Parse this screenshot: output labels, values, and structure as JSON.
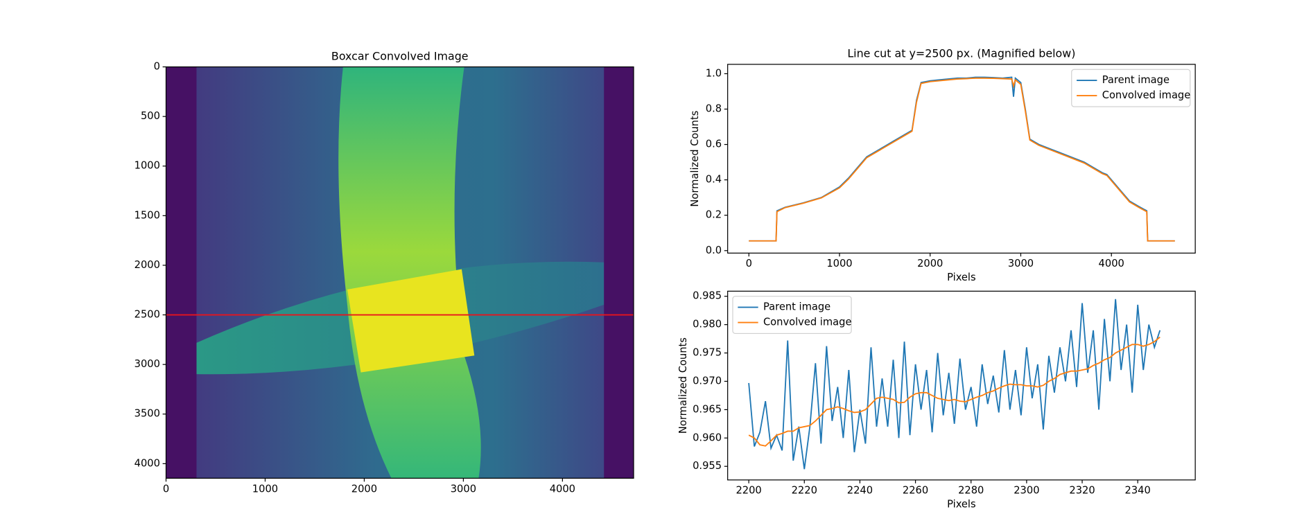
{
  "chart_data": [
    {
      "type": "image",
      "title": "Boxcar Convolved Image",
      "xlim": [
        0,
        4718
      ],
      "ylim": [
        4147,
        0
      ],
      "xticks": [
        0,
        1000,
        2000,
        3000,
        4000
      ],
      "yticks": [
        0,
        500,
        1000,
        1500,
        2000,
        2500,
        3000,
        3500,
        4000
      ],
      "hline": 2500,
      "hline_color": "#e8141c"
    },
    {
      "type": "line",
      "title": "Line cut at y=2500 px. (Magnified below)",
      "xlabel": "Pixels",
      "ylabel": "Normalized Counts",
      "x": [
        0,
        300,
        310,
        400,
        600,
        800,
        1000,
        1100,
        1200,
        1300,
        1400,
        1500,
        1600,
        1700,
        1800,
        1850,
        1900,
        2000,
        2100,
        2200,
        2300,
        2400,
        2500,
        2600,
        2700,
        2800,
        2900,
        2920,
        2940,
        3000,
        3050,
        3100,
        3200,
        3300,
        3400,
        3500,
        3600,
        3700,
        3800,
        3900,
        3950,
        4000,
        4100,
        4200,
        4300,
        4390,
        4400,
        4700
      ],
      "series": [
        {
          "name": "Parent image",
          "color": "#1f77b4",
          "values": [
            0.055,
            0.055,
            0.225,
            0.245,
            0.27,
            0.3,
            0.36,
            0.41,
            0.47,
            0.53,
            0.56,
            0.59,
            0.62,
            0.65,
            0.68,
            0.85,
            0.95,
            0.96,
            0.965,
            0.97,
            0.975,
            0.975,
            0.98,
            0.98,
            0.978,
            0.975,
            0.98,
            0.87,
            0.975,
            0.95,
            0.8,
            0.63,
            0.6,
            0.58,
            0.56,
            0.54,
            0.52,
            0.5,
            0.47,
            0.44,
            0.43,
            0.4,
            0.34,
            0.28,
            0.25,
            0.225,
            0.055,
            0.055
          ]
        },
        {
          "name": "Convolved image",
          "color": "#ff7f0e",
          "values": [
            0.055,
            0.055,
            0.22,
            0.243,
            0.268,
            0.298,
            0.355,
            0.405,
            0.465,
            0.525,
            0.555,
            0.585,
            0.615,
            0.645,
            0.675,
            0.84,
            0.945,
            0.955,
            0.96,
            0.965,
            0.97,
            0.972,
            0.975,
            0.975,
            0.974,
            0.972,
            0.97,
            0.93,
            0.965,
            0.94,
            0.79,
            0.625,
            0.595,
            0.575,
            0.555,
            0.535,
            0.515,
            0.495,
            0.465,
            0.435,
            0.425,
            0.395,
            0.335,
            0.275,
            0.245,
            0.22,
            0.055,
            0.055
          ]
        }
      ],
      "xlim": [
        -234,
        4925
      ],
      "ylim": [
        -0.014,
        1.053
      ],
      "xticks": [
        0,
        1000,
        2000,
        3000,
        4000
      ],
      "yticks": [
        {
          "value": 0,
          "label": "0.0"
        },
        0.2,
        0.4,
        0.6,
        0.8,
        {
          "value": 1,
          "label": "1.0"
        }
      ],
      "legend": "upper right"
    },
    {
      "type": "line",
      "xlabel": "Pixels",
      "ylabel": "Normalized Counts",
      "x": [
        2200,
        2202,
        2204,
        2206,
        2208,
        2210,
        2212,
        2214,
        2216,
        2218,
        2220,
        2222,
        2224,
        2226,
        2228,
        2230,
        2232,
        2234,
        2236,
        2238,
        2240,
        2242,
        2244,
        2246,
        2248,
        2250,
        2252,
        2254,
        2256,
        2258,
        2260,
        2262,
        2264,
        2266,
        2268,
        2270,
        2272,
        2274,
        2276,
        2278,
        2280,
        2282,
        2284,
        2286,
        2288,
        2290,
        2292,
        2294,
        2296,
        2298,
        2300,
        2302,
        2304,
        2306,
        2308,
        2310,
        2312,
        2314,
        2316,
        2318,
        2320,
        2322,
        2324,
        2326,
        2328,
        2330,
        2332,
        2334,
        2336,
        2338,
        2340,
        2342,
        2344,
        2346,
        2348
      ],
      "series": [
        {
          "name": "Parent image",
          "color": "#1f77b4",
          "values": [
            0.9697,
            0.9585,
            0.961,
            0.9665,
            0.9582,
            0.9605,
            0.9578,
            0.9772,
            0.956,
            0.962,
            0.9545,
            0.962,
            0.9732,
            0.959,
            0.9762,
            0.963,
            0.969,
            0.96,
            0.972,
            0.9575,
            0.965,
            0.959,
            0.976,
            0.962,
            0.9705,
            0.962,
            0.9738,
            0.96,
            0.977,
            0.9605,
            0.973,
            0.965,
            0.972,
            0.961,
            0.975,
            0.964,
            0.9715,
            0.9625,
            0.974,
            0.965,
            0.969,
            0.962,
            0.973,
            0.966,
            0.971,
            0.9645,
            0.9755,
            0.965,
            0.972,
            0.964,
            0.976,
            0.967,
            0.973,
            0.9615,
            0.9745,
            0.968,
            0.976,
            0.97,
            0.979,
            0.969,
            0.9838,
            0.9715,
            0.979,
            0.965,
            0.981,
            0.97,
            0.9845,
            0.972,
            0.98,
            0.968,
            0.9835,
            0.972,
            0.98,
            0.976,
            0.979
          ]
        },
        {
          "name": "Convolved image",
          "color": "#ff7f0e",
          "values": [
            0.9605,
            0.96,
            0.9588,
            0.9586,
            0.9595,
            0.9605,
            0.9608,
            0.9612,
            0.9612,
            0.9618,
            0.962,
            0.9622,
            0.963,
            0.964,
            0.965,
            0.9652,
            0.9655,
            0.9652,
            0.9648,
            0.9645,
            0.9646,
            0.965,
            0.966,
            0.967,
            0.9672,
            0.967,
            0.9668,
            0.9662,
            0.9663,
            0.9672,
            0.9678,
            0.968,
            0.968,
            0.9675,
            0.967,
            0.9668,
            0.9666,
            0.9668,
            0.9665,
            0.9664,
            0.9668,
            0.9672,
            0.9675,
            0.968,
            0.9683,
            0.9688,
            0.9692,
            0.9695,
            0.9694,
            0.9694,
            0.9692,
            0.9692,
            0.969,
            0.9693,
            0.97,
            0.9705,
            0.9712,
            0.9715,
            0.9718,
            0.9718,
            0.972,
            0.9722,
            0.9728,
            0.9732,
            0.9738,
            0.9742,
            0.975,
            0.9755,
            0.976,
            0.9765,
            0.9765,
            0.9762,
            0.9765,
            0.977,
            0.9778
          ]
        }
      ],
      "xlim": [
        2192.4,
        2360.7
      ],
      "ylim": [
        0.9526,
        0.9859
      ],
      "xticks": [
        2200,
        2220,
        2240,
        2260,
        2280,
        2300,
        2320,
        2340
      ],
      "yticks": [
        0.955,
        {
          "value": 0.96,
          "label": "0.960"
        },
        0.965,
        {
          "value": 0.97,
          "label": "0.970"
        },
        0.975,
        {
          "value": 0.98,
          "label": "0.980"
        },
        0.985
      ],
      "legend": "upper left"
    }
  ]
}
